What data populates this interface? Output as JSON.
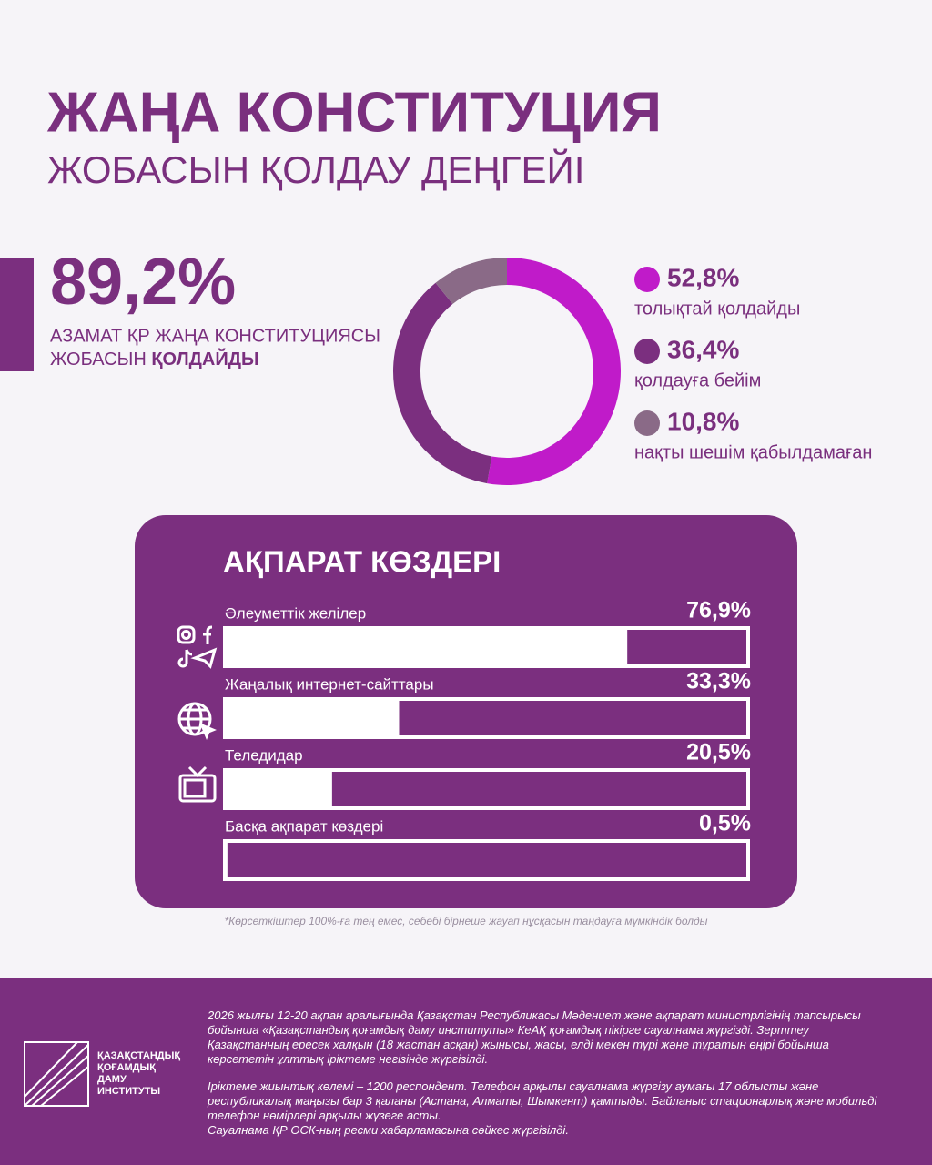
{
  "header": {
    "title": "ЖАҢА КОНСТИТУЦИЯ",
    "subtitle": "ЖОБАСЫН ҚОЛДАУ ДЕҢГЕЙІ"
  },
  "highlight": {
    "figure": "89,2%",
    "line1": "АЗАМАТ ҚР ЖАҢА КОНСТИТУЦИЯСЫ",
    "line2": "ЖОБАСЫН",
    "line2_bold": "ҚОЛДАЙДЫ"
  },
  "chart_data": [
    {
      "type": "donut",
      "categories": [
        "толықтай қолдайды",
        "қолдауға бейім",
        "нақты шешім қабылдамаған"
      ],
      "values": [
        52.8,
        36.4,
        10.8
      ],
      "value_labels": [
        "52,8%",
        "36,4%",
        "10,8%"
      ],
      "colors": [
        "#c01bc9",
        "#7b2f7f",
        "#8a6a87"
      ]
    },
    {
      "type": "bar",
      "orientation": "horizontal",
      "title": "АҚПАРАТ КӨЗДЕРІ",
      "categories": [
        "Әлеуметтік желілер",
        "Жаңалық интернет-сайттары",
        "Теледидар",
        "Басқа ақпарат көздері"
      ],
      "values": [
        76.9,
        33.3,
        20.5,
        0.5
      ],
      "value_labels": [
        "76,9%",
        "33,3%",
        "20,5%",
        "0,5%"
      ],
      "xlim": [
        0,
        100
      ],
      "color": "#ffffff"
    }
  ],
  "note": "*Көрсеткіштер 100%-ға тең емес, себебі бірнеше жауап нұсқасын таңдауға мүмкіндік болды",
  "footer": {
    "logo": [
      "ҚАЗАҚСТАНДЫҚ",
      "ҚОҒАМДЫҚ",
      "ДАМУ",
      "ИНСТИТУТЫ"
    ],
    "paragraphs": [
      "2026 жылғы 12-20 ақпан аралығында Қазақстан Республикасы Мәдениет және ақпарат министрлігінің тапсырысы бойынша «Қазақстандық қоғамдық даму институты» КеАҚ қоғамдық пікірге сауалнама жүргізді. Зерттеу Қазақстанның ересек халқын (18 жастан асқан) жынысы, жасы, елді мекен түрі және тұратын өңірі бойынша көрсететін ұлттық іріктеме негізінде жүргізілді.",
      "Іріктеме жиынтық көлемі – 1200 респондент. Телефон арқылы сауалнама жүргізу аумағы 17 облысты және республикалық маңызы бар 3 қаланы (Астана, Алматы, Шымкент) қамтыды. Байланыс стационарлық және мобильді телефон нөмірлері арқылы жүзеге асты.",
      "Сауалнама ҚР ОСК-ның ресми хабарламасына сәйкес жүргізілді."
    ]
  }
}
